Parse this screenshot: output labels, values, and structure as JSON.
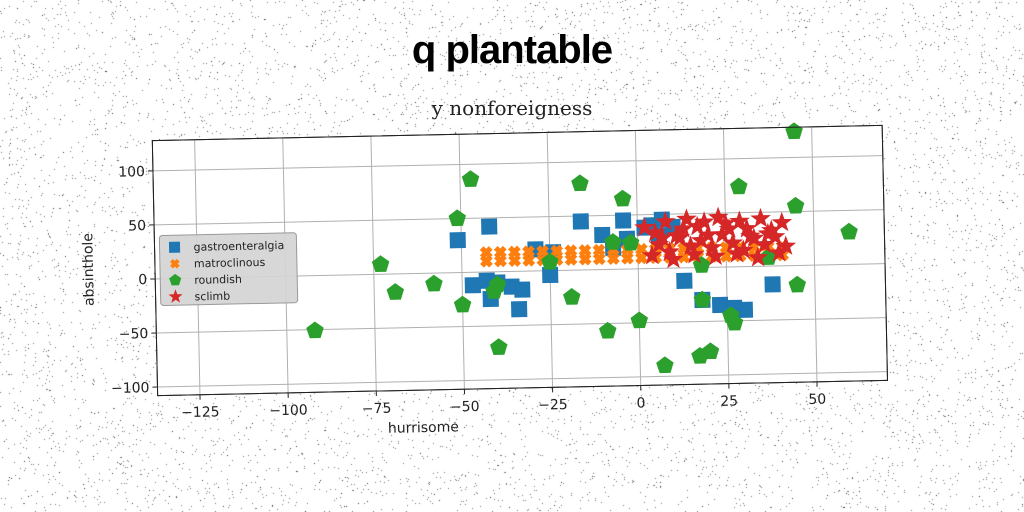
{
  "header": {
    "title": "q plantable"
  },
  "chart_data": {
    "type": "scatter",
    "title": "y nonforeigness",
    "xlabel": "hurrisome",
    "ylabel": "absinthole",
    "xlim": [
      -137,
      70
    ],
    "ylim": [
      -108,
      128
    ],
    "xticks": [
      -125,
      -100,
      -75,
      -50,
      -25,
      0,
      25,
      50
    ],
    "yticks": [
      -100,
      -50,
      0,
      50,
      100
    ],
    "grid": true,
    "legend": "left",
    "series": [
      {
        "name": "gastroenteralgia",
        "marker": "square",
        "color": "#1f77b4",
        "points": [
          [
            -51,
            30
          ],
          [
            -42,
            42
          ],
          [
            -47,
            -12
          ],
          [
            -43,
            -8
          ],
          [
            -42,
            -25
          ],
          [
            -40,
            -10
          ],
          [
            -36,
            -14
          ],
          [
            -33,
            -17
          ],
          [
            -34,
            -35
          ],
          [
            -29,
            20
          ],
          [
            -24,
            17
          ],
          [
            -25,
            -4
          ],
          [
            -16,
            45
          ],
          [
            -10,
            32
          ],
          [
            -7,
            20
          ],
          [
            -4,
            45
          ],
          [
            -3,
            28
          ],
          [
            2,
            38
          ],
          [
            4,
            40
          ],
          [
            6,
            30
          ],
          [
            7,
            45
          ],
          [
            10,
            38
          ],
          [
            13,
            -12
          ],
          [
            18,
            -30
          ],
          [
            23,
            -35
          ],
          [
            27,
            -38
          ],
          [
            30,
            -40
          ],
          [
            38,
            -17
          ]
        ]
      },
      {
        "name": "matroclinous",
        "marker": "x",
        "color": "#ff7f0e",
        "points": [
          [
            -43,
            18
          ],
          [
            -39,
            18
          ],
          [
            -35,
            18
          ],
          [
            -31,
            18
          ],
          [
            -27,
            18
          ],
          [
            -23,
            18
          ],
          [
            -19,
            18
          ],
          [
            -15,
            18
          ],
          [
            -11,
            18
          ],
          [
            -7,
            18
          ],
          [
            -3,
            18
          ],
          [
            1,
            18
          ],
          [
            5,
            18
          ],
          [
            9,
            18
          ],
          [
            13,
            18
          ],
          [
            17,
            18
          ],
          [
            21,
            18
          ],
          [
            25,
            18
          ],
          [
            29,
            18
          ],
          [
            33,
            18
          ],
          [
            37,
            18
          ],
          [
            41,
            18
          ],
          [
            -43,
            10
          ],
          [
            -39,
            10
          ],
          [
            -35,
            10
          ],
          [
            -31,
            10
          ],
          [
            -27,
            10
          ],
          [
            -23,
            10
          ],
          [
            -19,
            10
          ],
          [
            -15,
            10
          ],
          [
            -11,
            10
          ],
          [
            -7,
            10
          ],
          [
            -3,
            10
          ],
          [
            1,
            10
          ],
          [
            5,
            10
          ],
          [
            9,
            10
          ],
          [
            13,
            10
          ],
          [
            17,
            10
          ],
          [
            21,
            10
          ],
          [
            25,
            10
          ],
          [
            29,
            10
          ],
          [
            33,
            10
          ],
          [
            37,
            10
          ],
          [
            41,
            10
          ]
        ]
      },
      {
        "name": "roundish",
        "marker": "pentagon",
        "color": "#2ca02c",
        "points": [
          [
            45,
            124
          ],
          [
            -47,
            86
          ],
          [
            -16,
            80
          ],
          [
            29,
            74
          ],
          [
            -4,
            65
          ],
          [
            -51,
            50
          ],
          [
            45,
            55
          ],
          [
            -7,
            25
          ],
          [
            -2,
            24
          ],
          [
            -25,
            8
          ],
          [
            -73,
            9
          ],
          [
            60,
            30
          ],
          [
            18,
            2
          ],
          [
            37,
            8
          ],
          [
            -69,
            -17
          ],
          [
            -58,
            -10
          ],
          [
            -40,
            -12
          ],
          [
            -41,
            -18
          ],
          [
            -19,
            -25
          ],
          [
            -50,
            -30
          ],
          [
            18,
            -30
          ],
          [
            26,
            -45
          ],
          [
            27,
            -52
          ],
          [
            -92,
            -51
          ],
          [
            -9,
            -57
          ],
          [
            0,
            -48
          ],
          [
            20,
            -78
          ],
          [
            17,
            -82
          ],
          [
            -40,
            -70
          ],
          [
            7,
            -90
          ],
          [
            45,
            -18
          ]
        ]
      },
      {
        "name": "sclimb",
        "marker": "star",
        "color": "#d62728",
        "points": [
          [
            2,
            38
          ],
          [
            5,
            33
          ],
          [
            8,
            43
          ],
          [
            11,
            30
          ],
          [
            14,
            45
          ],
          [
            17,
            38
          ],
          [
            20,
            30
          ],
          [
            23,
            46
          ],
          [
            26,
            35
          ],
          [
            29,
            42
          ],
          [
            32,
            28
          ],
          [
            35,
            44
          ],
          [
            38,
            33
          ],
          [
            41,
            40
          ],
          [
            6,
            22
          ],
          [
            9,
            15
          ],
          [
            12,
            28
          ],
          [
            15,
            20
          ],
          [
            18,
            25
          ],
          [
            21,
            18
          ],
          [
            24,
            30
          ],
          [
            27,
            22
          ],
          [
            30,
            15
          ],
          [
            33,
            26
          ],
          [
            36,
            20
          ],
          [
            39,
            27
          ],
          [
            42,
            18
          ],
          [
            10,
            8
          ],
          [
            16,
            12
          ],
          [
            22,
            10
          ],
          [
            28,
            12
          ],
          [
            34,
            8
          ],
          [
            40,
            12
          ],
          [
            4,
            12
          ],
          [
            13,
            36
          ],
          [
            25,
            40
          ],
          [
            31,
            35
          ],
          [
            37,
            30
          ],
          [
            19,
            42
          ],
          [
            7,
            28
          ]
        ]
      }
    ]
  }
}
